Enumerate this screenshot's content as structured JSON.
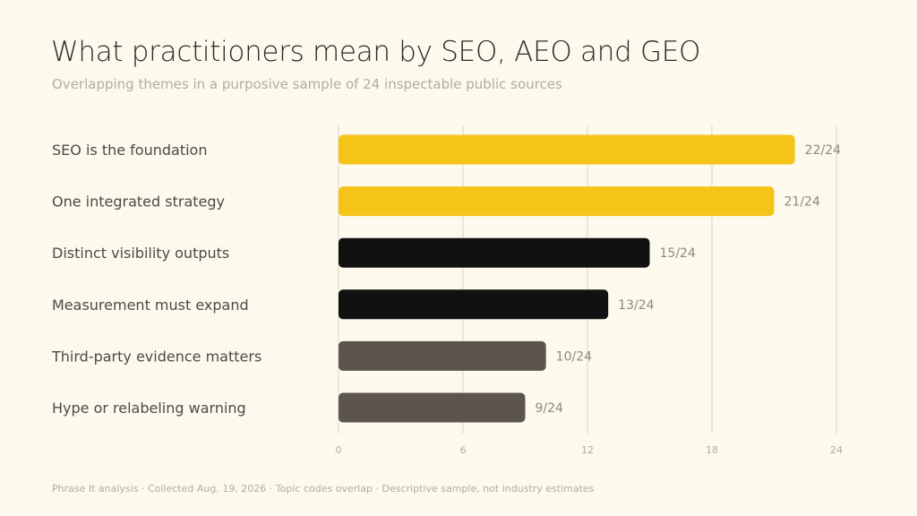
{
  "title": "What practitioners mean by SEO, AEO and GEO",
  "subtitle": "Overlapping themes in a purposive sample of 24 inspectable public sources",
  "footer": "Phrase It analysis · Collected Aug. 19, 2026 · Topic codes overlap · Descriptive sample, not industry estimates",
  "colors": {
    "background": "#fdf9ec",
    "gold": "#f4c418",
    "black": "#111111",
    "gray": "#5c554d"
  },
  "chart_data": {
    "type": "bar",
    "orientation": "horizontal",
    "title": "What practitioners mean by SEO, AEO and GEO",
    "subtitle": "Overlapping themes in a purposive sample of 24 inspectable public sources",
    "categories": [
      "SEO is the foundation",
      "One integrated strategy",
      "Distinct visibility outputs",
      "Measurement must expand",
      "Third-party evidence matters",
      "Hype or relabeling warning"
    ],
    "values": [
      22,
      21,
      15,
      13,
      10,
      9
    ],
    "value_labels": [
      "22/24",
      "21/24",
      "15/24",
      "13/24",
      "10/24",
      "9/24"
    ],
    "bar_colors": [
      "#f4c418",
      "#f4c418",
      "#111111",
      "#111111",
      "#5c554d",
      "#5c554d"
    ],
    "xlim": [
      0,
      24
    ],
    "xticks": [
      0,
      6,
      12,
      18,
      24
    ],
    "grid": true,
    "legend": "none"
  }
}
